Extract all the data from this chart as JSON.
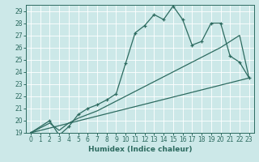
{
  "xlabel": "Humidex (Indice chaleur)",
  "xlim": [
    -0.5,
    23.5
  ],
  "ylim": [
    19,
    29.5
  ],
  "yticks": [
    19,
    20,
    21,
    22,
    23,
    24,
    25,
    26,
    27,
    28,
    29
  ],
  "xticks": [
    0,
    1,
    2,
    3,
    4,
    5,
    6,
    7,
    8,
    9,
    10,
    11,
    12,
    13,
    14,
    15,
    16,
    17,
    18,
    19,
    20,
    21,
    22,
    23
  ],
  "bg_color": "#cce8e8",
  "grid_color": "#ffffff",
  "line_color": "#2d6b60",
  "lines": [
    {
      "x": [
        0,
        2,
        3,
        4,
        5,
        6,
        7,
        8,
        9,
        10,
        11,
        12,
        13,
        14,
        15,
        16,
        17,
        18,
        19,
        20,
        21,
        22,
        23
      ],
      "y": [
        19.0,
        20.0,
        18.8,
        19.5,
        20.5,
        21.0,
        21.3,
        21.7,
        22.2,
        24.7,
        27.2,
        27.8,
        28.7,
        28.3,
        29.4,
        28.3,
        26.2,
        26.5,
        28.0,
        28.0,
        25.3,
        24.8,
        23.5
      ],
      "marker": true
    },
    {
      "x": [
        0,
        2,
        3,
        4,
        5,
        6,
        7,
        8,
        9,
        10,
        11,
        12,
        13,
        14,
        15,
        16,
        17,
        18,
        19,
        20,
        21,
        22,
        23
      ],
      "y": [
        19.0,
        19.8,
        19.2,
        19.8,
        20.2,
        20.5,
        20.8,
        21.2,
        21.6,
        22.0,
        22.4,
        22.8,
        23.2,
        23.6,
        24.0,
        24.4,
        24.8,
        25.2,
        25.6,
        26.0,
        26.5,
        27.0,
        23.5
      ],
      "marker": false
    },
    {
      "x": [
        0,
        23
      ],
      "y": [
        19.0,
        23.5
      ],
      "marker": false
    }
  ]
}
